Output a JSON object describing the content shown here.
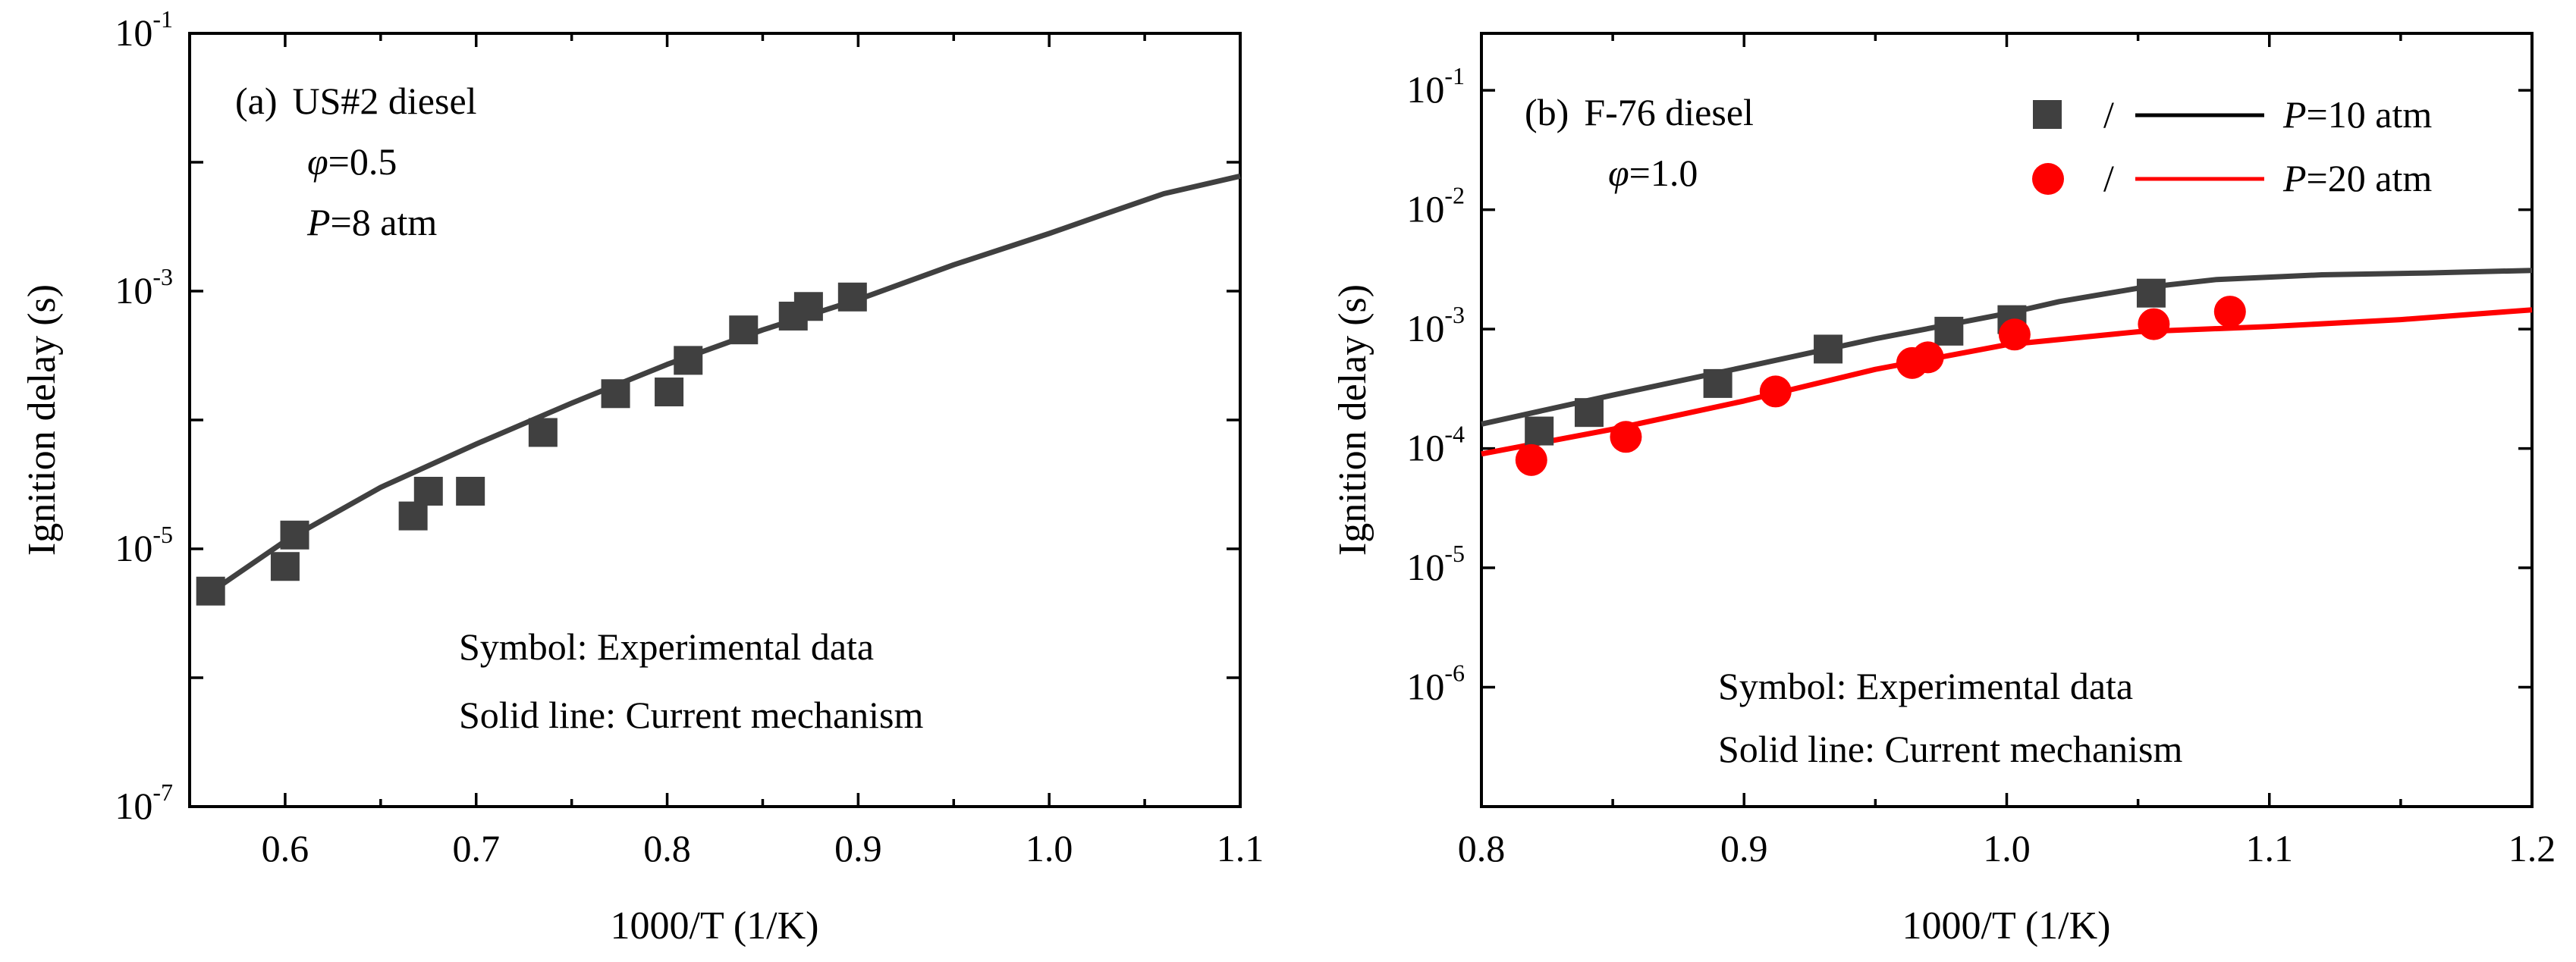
{
  "chart_data": [
    {
      "type": "scatter",
      "panel_label": "(a)",
      "title": "US#2 diesel",
      "conditions": [
        "φ=0.5",
        "P=8 atm"
      ],
      "xlabel": "1000/T (1/K)",
      "ylabel": "Ignition delay (s)",
      "xlim": [
        0.55,
        1.1
      ],
      "ylim": [
        1e-07,
        0.1
      ],
      "yscale": "log",
      "xticks": [
        "0.6",
        "0.7",
        "0.8",
        "0.9",
        "1.0",
        "1.1"
      ],
      "yticks": [
        {
          "base": "10",
          "exp": "-1",
          "value": 0.1
        },
        {
          "base": "10",
          "exp": "-3",
          "value": 0.001
        },
        {
          "base": "10",
          "exp": "-5",
          "value": 1e-05
        },
        {
          "base": "10",
          "exp": "-7",
          "value": 1e-07
        }
      ],
      "annotations": [
        "Symbol: Experimental data",
        "Solid line: Current mechanism"
      ],
      "series": [
        {
          "kind": "experiment",
          "marker": "square",
          "color": "#404040",
          "x": [
            0.561,
            0.6,
            0.605,
            0.667,
            0.675,
            0.697,
            0.735,
            0.773,
            0.801,
            0.811,
            0.84,
            0.866,
            0.874,
            0.897
          ],
          "y": [
            4.7e-06,
            7.3e-06,
            1.28e-05,
            1.8e-05,
            2.8e-05,
            2.8e-05,
            8e-05,
            0.00016,
            0.000165,
            0.00029,
            0.0005,
            0.00064,
            0.00076,
            0.0009
          ]
        },
        {
          "kind": "model",
          "line": "solid",
          "color": "#404040",
          "x": [
            0.555,
            0.6,
            0.65,
            0.7,
            0.75,
            0.8,
            0.85,
            0.9,
            0.95,
            1.0,
            1.03,
            1.06,
            1.1
          ],
          "y": [
            4e-06,
            1.15e-05,
            3e-05,
            6.5e-05,
            0.000135,
            0.00027,
            0.0005,
            0.00086,
            0.0016,
            0.0028,
            0.004,
            0.0057,
            0.0078
          ]
        }
      ]
    },
    {
      "type": "scatter",
      "panel_label": "(b)",
      "title": "F-76 diesel",
      "conditions": [
        "φ=1.0"
      ],
      "xlabel": "1000/T (1/K)",
      "ylabel": "Ignition delay (s)",
      "xlim": [
        0.8,
        1.2
      ],
      "ylim": [
        1e-07,
        0.3
      ],
      "yscale": "log",
      "xticks": [
        "0.8",
        "0.9",
        "1.0",
        "1.1",
        "1.2"
      ],
      "yticks": [
        {
          "base": "10",
          "exp": "-1",
          "value": 0.1
        },
        {
          "base": "10",
          "exp": "-2",
          "value": 0.01
        },
        {
          "base": "10",
          "exp": "-3",
          "value": 0.001
        },
        {
          "base": "10",
          "exp": "-4",
          "value": 0.0001
        },
        {
          "base": "10",
          "exp": "-5",
          "value": 1e-05
        },
        {
          "base": "10",
          "exp": "-6",
          "value": 1e-06
        }
      ],
      "annotations": [
        "Symbol: Experimental data",
        "Solid line: Current mechanism"
      ],
      "legend_position": "top-right",
      "legend": [
        {
          "sep": "/",
          "label": "P=10 atm"
        },
        {
          "sep": "/",
          "label": "P=20 atm"
        }
      ],
      "series": [
        {
          "name": "P=10 atm",
          "kind": "experiment",
          "marker": "square",
          "color": "#404040",
          "x": [
            0.822,
            0.841,
            0.89,
            0.932,
            0.978,
            1.002,
            1.055
          ],
          "y": [
            0.00014,
            0.0002,
            0.00035,
            0.00068,
            0.00096,
            0.0012,
            0.002
          ]
        },
        {
          "name": "P=10 atm",
          "kind": "model",
          "line": "solid",
          "color": "#404040",
          "x": [
            0.8,
            0.85,
            0.9,
            0.95,
            1.0,
            1.02,
            1.05,
            1.08,
            1.12,
            1.16,
            1.2
          ],
          "y": [
            0.00016,
            0.00028,
            0.00048,
            0.00083,
            0.00135,
            0.0017,
            0.0022,
            0.0026,
            0.00285,
            0.00295,
            0.0031
          ]
        },
        {
          "name": "P=20 atm",
          "kind": "experiment",
          "marker": "circle",
          "color": "#ff0000",
          "x": [
            0.819,
            0.855,
            0.912,
            0.964,
            0.97,
            1.003,
            1.056,
            1.085
          ],
          "y": [
            8e-05,
            0.000125,
            0.0003,
            0.00052,
            0.00058,
            0.0009,
            0.0011,
            0.0014
          ]
        },
        {
          "name": "P=20 atm",
          "kind": "model",
          "line": "solid",
          "color": "#ff0000",
          "x": [
            0.8,
            0.85,
            0.9,
            0.95,
            1.0,
            1.05,
            1.1,
            1.15,
            1.2
          ],
          "y": [
            9e-05,
            0.000145,
            0.00025,
            0.00046,
            0.00074,
            0.00095,
            0.00105,
            0.0012,
            0.00145
          ]
        }
      ]
    }
  ]
}
